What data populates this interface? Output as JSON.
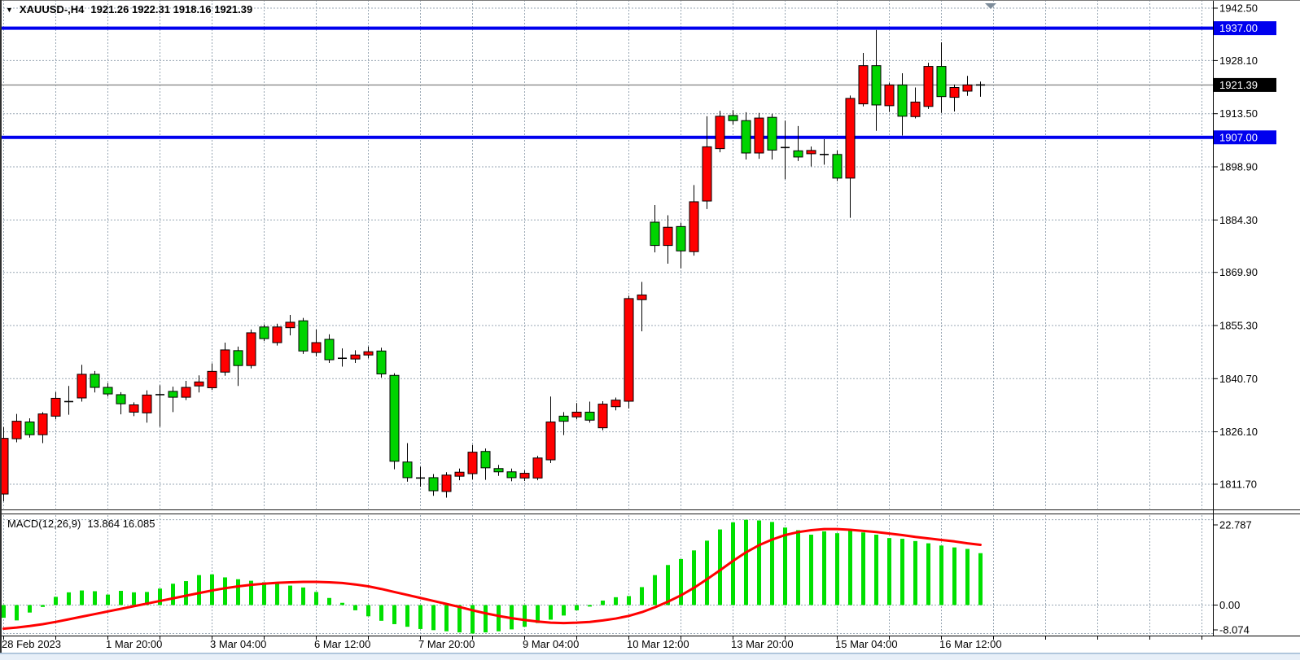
{
  "title": {
    "symbol_period": "XAUUSD-,H4",
    "ohlc_text": "1921.26 1922.31 1918.16 1921.39"
  },
  "indicator": {
    "label": "MACD(12,26,9)",
    "values_text": "13.864 16.085"
  },
  "icons": {
    "symbol_dropdown": "▼"
  },
  "price_axis": {
    "ticks": [
      {
        "text": "1942.50",
        "price": 1942.5
      },
      {
        "text": "1928.10",
        "price": 1928.1
      },
      {
        "text": "1913.50",
        "price": 1913.5
      },
      {
        "text": "1898.90",
        "price": 1898.9
      },
      {
        "text": "1884.30",
        "price": 1884.3
      },
      {
        "text": "1869.90",
        "price": 1869.9
      },
      {
        "text": "1855.30",
        "price": 1855.3
      },
      {
        "text": "1840.70",
        "price": 1840.7
      },
      {
        "text": "1826.10",
        "price": 1826.1
      },
      {
        "text": "1811.70",
        "price": 1811.7
      }
    ],
    "hline_labels": [
      {
        "text": "1937.00",
        "price": 1937.0
      },
      {
        "text": "1907.00",
        "price": 1907.0
      }
    ],
    "current": {
      "text": "1921.39",
      "price": 1921.39
    }
  },
  "macd_axis": {
    "ticks": [
      {
        "text": "22.787",
        "value": 22.787
      },
      {
        "text": "0.00",
        "value": 0.0
      },
      {
        "text": "-8.074",
        "value": -8.074
      }
    ]
  },
  "time_axis": {
    "labels": [
      {
        "text": "28 Feb 2023",
        "index": 0
      },
      {
        "text": "1 Mar 20:00",
        "index": 8
      },
      {
        "text": "3 Mar 04:00",
        "index": 16
      },
      {
        "text": "6 Mar 12:00",
        "index": 24
      },
      {
        "text": "7 Mar 20:00",
        "index": 32
      },
      {
        "text": "9 Mar 04:00",
        "index": 40
      },
      {
        "text": "10 Mar 12:00",
        "index": 48
      },
      {
        "text": "13 Mar 20:00",
        "index": 56
      },
      {
        "text": "15 Mar 04:00",
        "index": 64
      },
      {
        "text": "16 Mar 12:00",
        "index": 72
      }
    ]
  },
  "colors": {
    "bull": "#ff0000",
    "bear": "#00d400",
    "wick": "#000000",
    "grid": "#99a7b4",
    "hline": "#0000ee",
    "current_line": "#8a8a8a",
    "current_box": "#000000",
    "macd_bar": "#00e000",
    "signal_line": "#ff0000",
    "axis_text": "#000000",
    "shift_marker": "#7e8d9b"
  },
  "chart_data": {
    "type": "candlestick",
    "symbol": "XAUUSD-",
    "timeframe": "H4",
    "title": "XAUUSD-,H4 1921.26 1922.31 1918.16 1921.39",
    "ylim": [
      1807.0,
      1945.0
    ],
    "grid": true,
    "ohlc_format": [
      "open",
      "high",
      "low",
      "close"
    ],
    "candles": [
      [
        1809.0,
        1827.4,
        1807.0,
        1824.3
      ],
      [
        1824.2,
        1831.0,
        1823.2,
        1829.0
      ],
      [
        1828.8,
        1829.8,
        1824.5,
        1825.3
      ],
      [
        1825.3,
        1831.5,
        1823.0,
        1831.0
      ],
      [
        1830.4,
        1837.0,
        1829.5,
        1835.3
      ],
      [
        1834.8,
        1838.7,
        1830.8,
        1834.4
      ],
      [
        1835.4,
        1844.5,
        1834.4,
        1841.9
      ],
      [
        1841.9,
        1842.8,
        1836.9,
        1838.3
      ],
      [
        1838.3,
        1839.5,
        1835.8,
        1836.5
      ],
      [
        1836.3,
        1837.0,
        1830.9,
        1833.8
      ],
      [
        1831.5,
        1834.2,
        1830.4,
        1833.5
      ],
      [
        1831.3,
        1837.5,
        1828.6,
        1836.2
      ],
      [
        1836.7,
        1838.9,
        1827.5,
        1836.3
      ],
      [
        1837.2,
        1838.5,
        1831.5,
        1835.6
      ],
      [
        1835.6,
        1840.1,
        1834.8,
        1838.3
      ],
      [
        1838.7,
        1841.6,
        1836.9,
        1839.8
      ],
      [
        1838.2,
        1844.9,
        1837.6,
        1842.7
      ],
      [
        1842.5,
        1850.6,
        1841.5,
        1848.6
      ],
      [
        1848.4,
        1849.5,
        1838.7,
        1844.3
      ],
      [
        1844.3,
        1854.2,
        1843.5,
        1853.3
      ],
      [
        1854.9,
        1855.6,
        1851.0,
        1851.7
      ],
      [
        1850.6,
        1855.8,
        1849.8,
        1854.9
      ],
      [
        1854.7,
        1858.2,
        1852.6,
        1856.2
      ],
      [
        1856.6,
        1857.4,
        1847.5,
        1848.3
      ],
      [
        1847.9,
        1854.2,
        1846.8,
        1850.6
      ],
      [
        1851.5,
        1852.9,
        1845.0,
        1845.9
      ],
      [
        1846.5,
        1849.0,
        1844.0,
        1846.3
      ],
      [
        1846.1,
        1848.5,
        1845.0,
        1847.2
      ],
      [
        1847.2,
        1849.5,
        1846.3,
        1848.1
      ],
      [
        1848.3,
        1849.2,
        1841.0,
        1842.0
      ],
      [
        1841.6,
        1842.2,
        1815.8,
        1818.0
      ],
      [
        1817.8,
        1823.0,
        1812.4,
        1813.5
      ],
      [
        1813.6,
        1816.5,
        1811.0,
        1813.4
      ],
      [
        1813.5,
        1814.5,
        1808.5,
        1809.9
      ],
      [
        1809.7,
        1815.0,
        1808.0,
        1814.2
      ],
      [
        1813.9,
        1816.0,
        1812.8,
        1815.0
      ],
      [
        1814.6,
        1822.5,
        1813.0,
        1820.5
      ],
      [
        1820.7,
        1821.5,
        1812.9,
        1816.2
      ],
      [
        1816.0,
        1817.0,
        1814.0,
        1815.1
      ],
      [
        1815.1,
        1816.0,
        1812.5,
        1813.5
      ],
      [
        1813.4,
        1815.5,
        1812.6,
        1814.7
      ],
      [
        1813.4,
        1819.5,
        1812.8,
        1818.9
      ],
      [
        1818.4,
        1835.8,
        1817.5,
        1828.8
      ],
      [
        1830.4,
        1831.5,
        1825.2,
        1829.0
      ],
      [
        1830.2,
        1834.0,
        1829.5,
        1831.5
      ],
      [
        1831.5,
        1834.4,
        1828.6,
        1829.3
      ],
      [
        1827.2,
        1834.5,
        1826.5,
        1833.7
      ],
      [
        1833.0,
        1835.5,
        1832.0,
        1834.8
      ],
      [
        1834.5,
        1863.5,
        1832.5,
        1862.7
      ],
      [
        1862.4,
        1867.3,
        1853.7,
        1863.7
      ],
      [
        1883.7,
        1888.4,
        1875.4,
        1877.3
      ],
      [
        1877.3,
        1885.6,
        1872.3,
        1882.3
      ],
      [
        1882.5,
        1883.5,
        1871.0,
        1875.8
      ],
      [
        1875.6,
        1893.9,
        1874.5,
        1889.3
      ],
      [
        1889.5,
        1912.8,
        1887.3,
        1904.4
      ],
      [
        1903.9,
        1914.3,
        1902.9,
        1912.8
      ],
      [
        1913.0,
        1914.5,
        1910.5,
        1911.6
      ],
      [
        1911.6,
        1913.9,
        1900.9,
        1902.7
      ],
      [
        1902.7,
        1913.7,
        1901.1,
        1912.3
      ],
      [
        1912.5,
        1913.5,
        1900.9,
        1903.5
      ],
      [
        1904.6,
        1911.6,
        1895.5,
        1904.2
      ],
      [
        1903.3,
        1910.1,
        1900.5,
        1901.6
      ],
      [
        1902.5,
        1904.5,
        1899.0,
        1903.4
      ],
      [
        1902.4,
        1906.5,
        1899.5,
        1902.3
      ],
      [
        1902.3,
        1903.4,
        1895.0,
        1895.8
      ],
      [
        1895.8,
        1918.5,
        1884.9,
        1917.7
      ],
      [
        1916.2,
        1930.2,
        1915.5,
        1926.7
      ],
      [
        1926.7,
        1936.5,
        1908.8,
        1915.9
      ],
      [
        1915.7,
        1922.0,
        1914.0,
        1921.4
      ],
      [
        1921.4,
        1924.6,
        1907.5,
        1912.8
      ],
      [
        1912.7,
        1920.7,
        1912.2,
        1916.7
      ],
      [
        1915.5,
        1927.5,
        1914.8,
        1926.5
      ],
      [
        1926.5,
        1933.1,
        1913.7,
        1918.2
      ],
      [
        1918.0,
        1921.5,
        1914.1,
        1920.7
      ],
      [
        1919.7,
        1923.9,
        1918.4,
        1921.4
      ],
      [
        1921.26,
        1922.31,
        1918.16,
        1921.39
      ]
    ],
    "horizontal_lines": [
      1937.0,
      1907.0
    ],
    "current_price": 1921.39,
    "last_ohlc": {
      "open": 1921.26,
      "high": 1922.31,
      "low": 1918.16,
      "close": 1921.39
    },
    "macd": {
      "label": "MACD(12,26,9)",
      "macd_value": 13.864,
      "signal_value": 16.085,
      "axis_ticks": [
        22.787,
        0.0,
        -8.074
      ],
      "histogram": [
        -3.4,
        -4.1,
        -2.0,
        -0.5,
        2.2,
        3.4,
        3.9,
        3.7,
        2.8,
        3.8,
        3.4,
        3.5,
        4.4,
        5.7,
        6.4,
        8.0,
        8.2,
        7.4,
        6.9,
        6.5,
        6.1,
        5.8,
        5.2,
        4.7,
        3.5,
        1.9,
        0.6,
        -1.4,
        -3.0,
        -4.2,
        -5.1,
        -5.8,
        -6.4,
        -6.7,
        -7.0,
        -7.3,
        -8.074,
        -7.3,
        -7.0,
        -6.5,
        -5.8,
        -4.8,
        -3.9,
        -2.8,
        -1.4,
        -0.4,
        1.2,
        2.1,
        2.4,
        4.8,
        8.0,
        10.7,
        12.3,
        14.6,
        17.2,
        20.2,
        22.1,
        22.787,
        22.6,
        22.2,
        20.7,
        20.0,
        18.8,
        19.7,
        19.2,
        20.0,
        19.4,
        18.8,
        17.9,
        17.7,
        17.1,
        16.5,
        15.9,
        15.4,
        15.0,
        13.864
      ],
      "signal": [
        -6.3,
        -6.0,
        -5.6,
        -5.1,
        -4.5,
        -3.8,
        -3.1,
        -2.4,
        -1.7,
        -1.0,
        -0.3,
        0.4,
        1.1,
        1.8,
        2.5,
        3.2,
        3.9,
        4.5,
        5.0,
        5.4,
        5.7,
        5.95,
        6.1,
        6.2,
        6.2,
        6.1,
        5.9,
        5.5,
        5.0,
        4.3,
        3.5,
        2.7,
        1.9,
        1.1,
        0.3,
        -0.5,
        -1.4,
        -2.2,
        -2.9,
        -3.5,
        -4.0,
        -4.4,
        -4.7,
        -4.8,
        -4.7,
        -4.5,
        -4.1,
        -3.6,
        -2.9,
        -1.9,
        -0.6,
        0.9,
        2.6,
        4.6,
        6.9,
        9.3,
        11.8,
        14.1,
        16.0,
        17.5,
        18.7,
        19.5,
        20.0,
        20.3,
        20.3,
        20.1,
        19.8,
        19.5,
        19.1,
        18.7,
        18.2,
        17.8,
        17.4,
        17.0,
        16.5,
        16.085
      ]
    }
  }
}
